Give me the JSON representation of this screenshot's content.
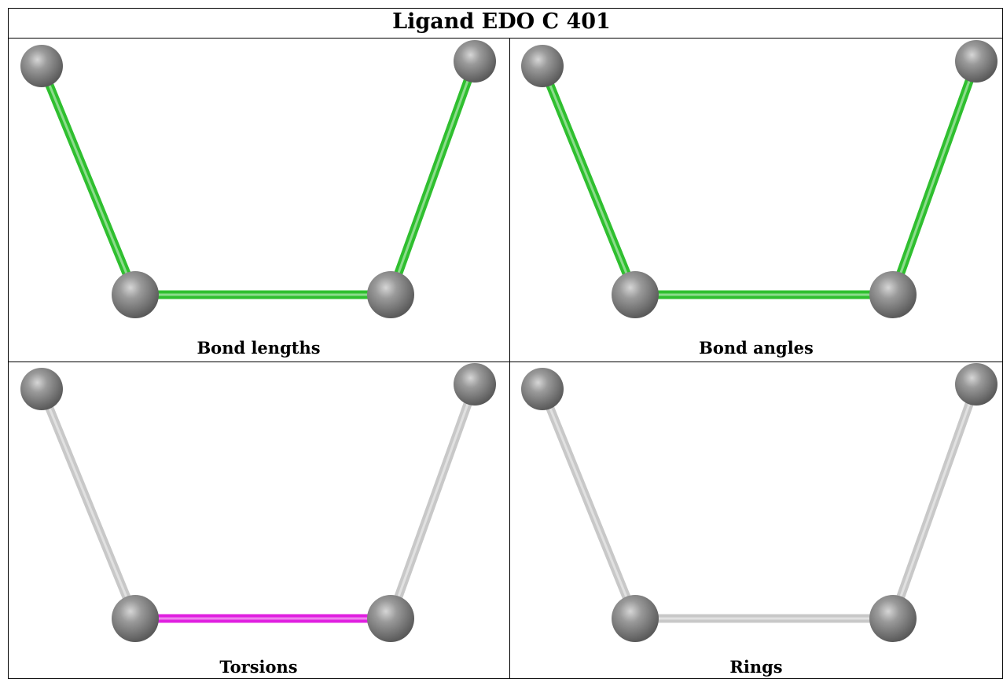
{
  "title": "Ligand EDO C 401",
  "panels": [
    {
      "caption": "Bond lengths",
      "bond_colors": [
        "#2fbf2f",
        "#2fbf2f",
        "#2fbf2f"
      ]
    },
    {
      "caption": "Bond angles",
      "bond_colors": [
        "#2fbf2f",
        "#2fbf2f",
        "#2fbf2f"
      ]
    },
    {
      "caption": "Torsions",
      "bond_colors": [
        "#c8c8c8",
        "#e020e0",
        "#c8c8c8"
      ]
    },
    {
      "caption": "Rings",
      "bond_colors": [
        "#c8c8c8",
        "#c8c8c8",
        "#c8c8c8"
      ]
    }
  ],
  "atom_color": "#7a7a7a"
}
